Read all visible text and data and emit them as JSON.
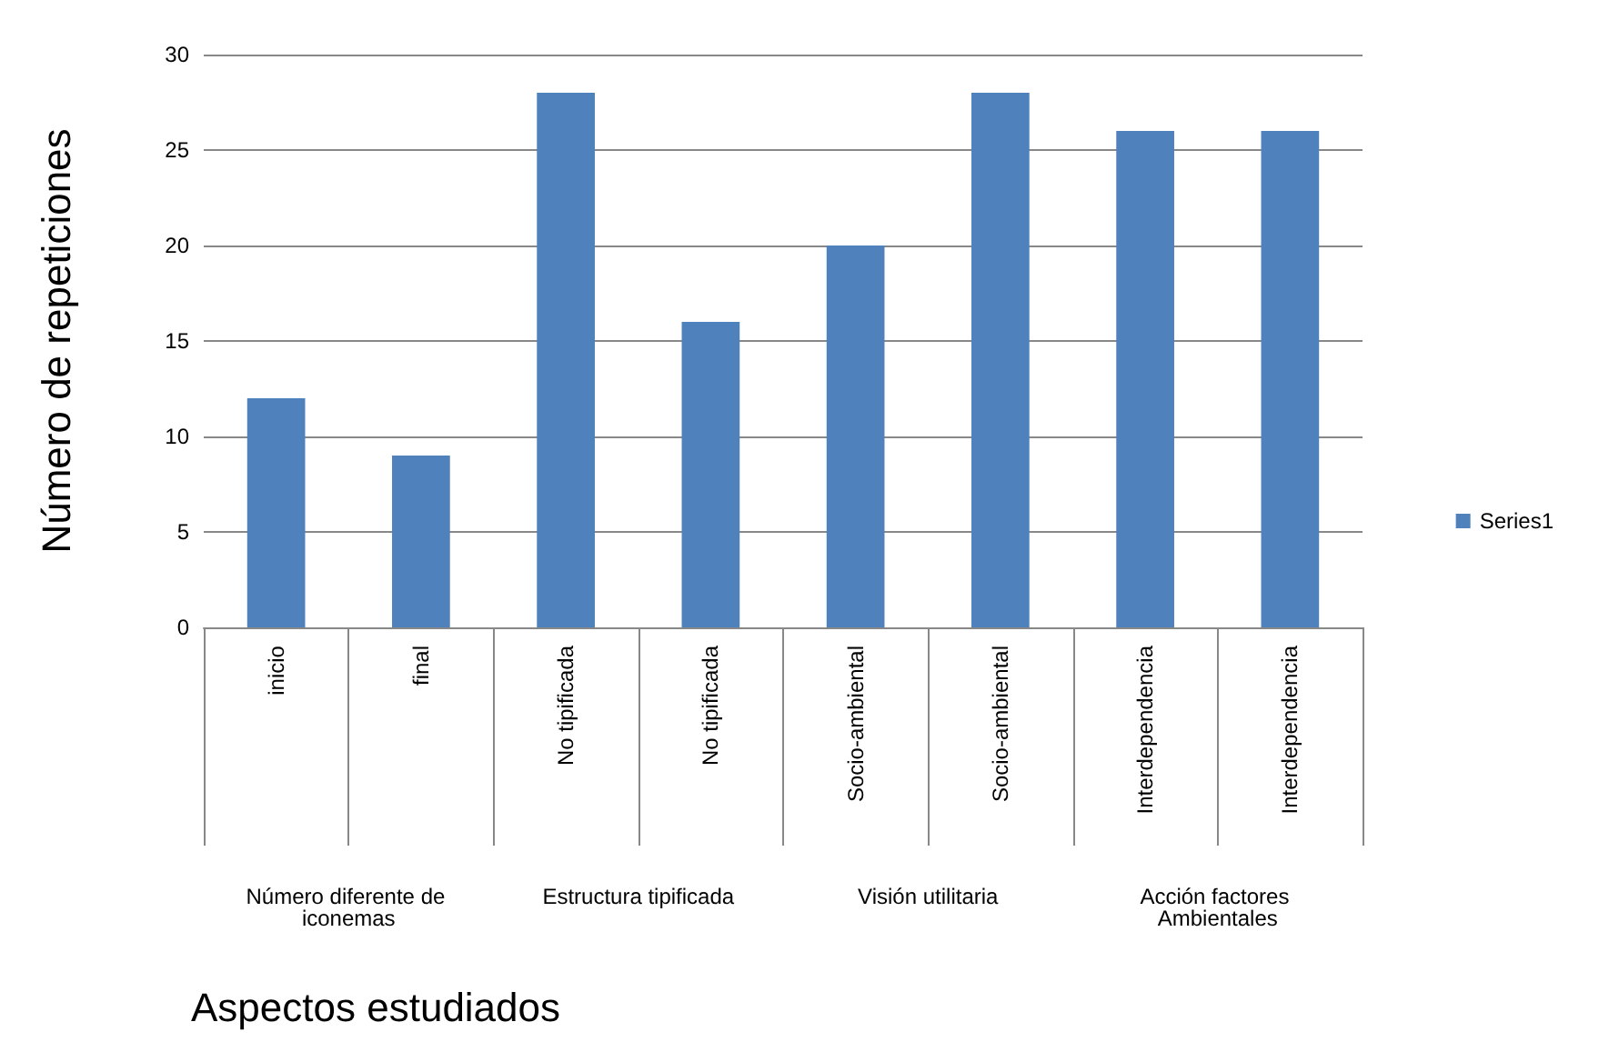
{
  "chart_data": {
    "type": "bar",
    "xlabel": "Aspectos estudiados",
    "ylabel": "Número de repeticiones",
    "categories": [
      "inicio",
      "final",
      "No tipificada",
      "No tipificada",
      "Socio-ambiental",
      "Socio-ambiental",
      "Interdependencia",
      "Interdependencia"
    ],
    "series": [
      {
        "name": "Series1",
        "color": "#4f81bd",
        "values": [
          12,
          9,
          28,
          16,
          20,
          28,
          26,
          26
        ]
      }
    ],
    "annotations": [
      "Número diferente de iconemas",
      "Estructura tipificada",
      "Visión utilitaria",
      "Acción factores Ambientales"
    ],
    "ylim": [
      0,
      30
    ],
    "yticks": [
      0,
      5,
      10,
      15,
      20,
      25,
      30
    ],
    "grid": "y",
    "legend": "right"
  }
}
